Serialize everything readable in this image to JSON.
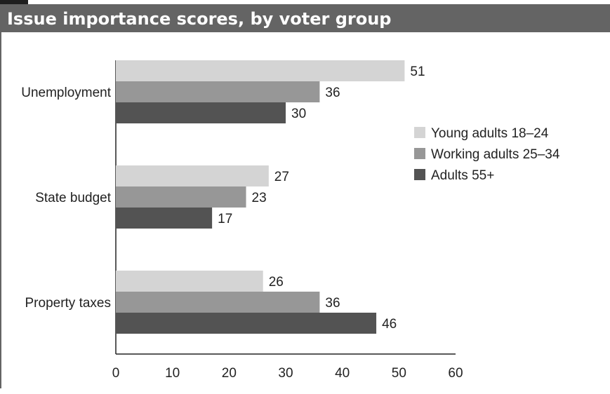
{
  "chart_data": {
    "type": "bar",
    "orientation": "horizontal",
    "title": "Issue importance scores, by voter group",
    "categories": [
      "Unemployment",
      "State budget",
      "Property taxes"
    ],
    "series": [
      {
        "name": "Young adults 18–24",
        "color": "#d4d4d4",
        "values": [
          51,
          27,
          26
        ]
      },
      {
        "name": "Working adults 25–34",
        "color": "#979797",
        "values": [
          36,
          23,
          36
        ]
      },
      {
        "name": "Adults 55+",
        "color": "#535353",
        "values": [
          30,
          17,
          46
        ]
      }
    ],
    "xlim": [
      0,
      60
    ],
    "xticks": [
      0,
      10,
      20,
      30,
      40,
      50,
      60
    ],
    "grid": false,
    "legend_position": "right"
  }
}
